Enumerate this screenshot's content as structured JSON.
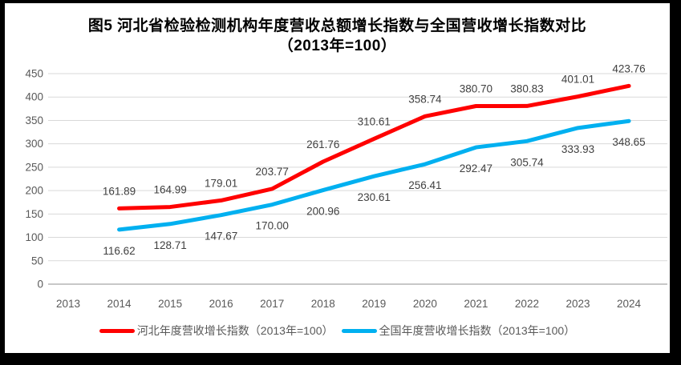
{
  "frame": {
    "background": "#FFFFFF",
    "border_color": "#000000"
  },
  "title": {
    "line1": "图5  河北省检验检测机构年度营收总额增长指数与全国营收增长指数对比",
    "line2": "（2013年=100）"
  },
  "chart_data": {
    "type": "line",
    "title": "图5  河北省检验检测机构年度营收总额增长指数与全国营收增长指数对比（2013年=100）",
    "categories": [
      "2013",
      "2014",
      "2015",
      "2016",
      "2017",
      "2018",
      "2019",
      "2020",
      "2021",
      "2022",
      "2023",
      "2024"
    ],
    "series": [
      {
        "key": "hebei",
        "name": "河北年度营收增长指数（2013年=100）",
        "color": "#FF0000",
        "start_category": "2014",
        "values": [
          161.89,
          164.99,
          179.01,
          203.77,
          261.76,
          310.61,
          358.74,
          380.7,
          380.83,
          401.01,
          423.76
        ],
        "labels": [
          "161.89",
          "164.99",
          "179.01",
          "203.77",
          "261.76",
          "310.61",
          "358.74",
          "380.70",
          "380.83",
          "401.01",
          "423.76"
        ],
        "label_position": "above"
      },
      {
        "key": "national",
        "name": "全国年度营收增长指数（2013年=100）",
        "color": "#00B0F0",
        "start_category": "2014",
        "values": [
          116.62,
          128.71,
          147.67,
          170.0,
          200.96,
          230.61,
          256.41,
          292.47,
          305.74,
          333.93,
          348.65
        ],
        "labels": [
          "116.62",
          "128.71",
          "147.67",
          "170.00",
          "200.96",
          "230.61",
          "256.41",
          "292.47",
          "305.74",
          "333.93",
          "348.65"
        ],
        "label_position": "below"
      }
    ],
    "y_axis": {
      "min": 0,
      "max": 450,
      "step": 50,
      "tick_labels": [
        "0",
        "50",
        "100",
        "150",
        "200",
        "250",
        "300",
        "350",
        "400",
        "450"
      ]
    },
    "x_axis": {
      "tick_labels": [
        "2013",
        "2014",
        "2015",
        "2016",
        "2017",
        "2018",
        "2019",
        "2020",
        "2021",
        "2022",
        "2023",
        "2024"
      ]
    },
    "grid": true,
    "legend_position": "bottom",
    "colors": {
      "gridline": "#D9D9D9",
      "axis_line": "#BFBFBF",
      "axis_text": "#595959",
      "data_label_text": "#404040"
    }
  },
  "legend": {
    "items": [
      {
        "label": "河北年度营收增长指数（2013年=100）"
      },
      {
        "label": "全国年度营收增长指数（2013年=100）"
      }
    ]
  }
}
